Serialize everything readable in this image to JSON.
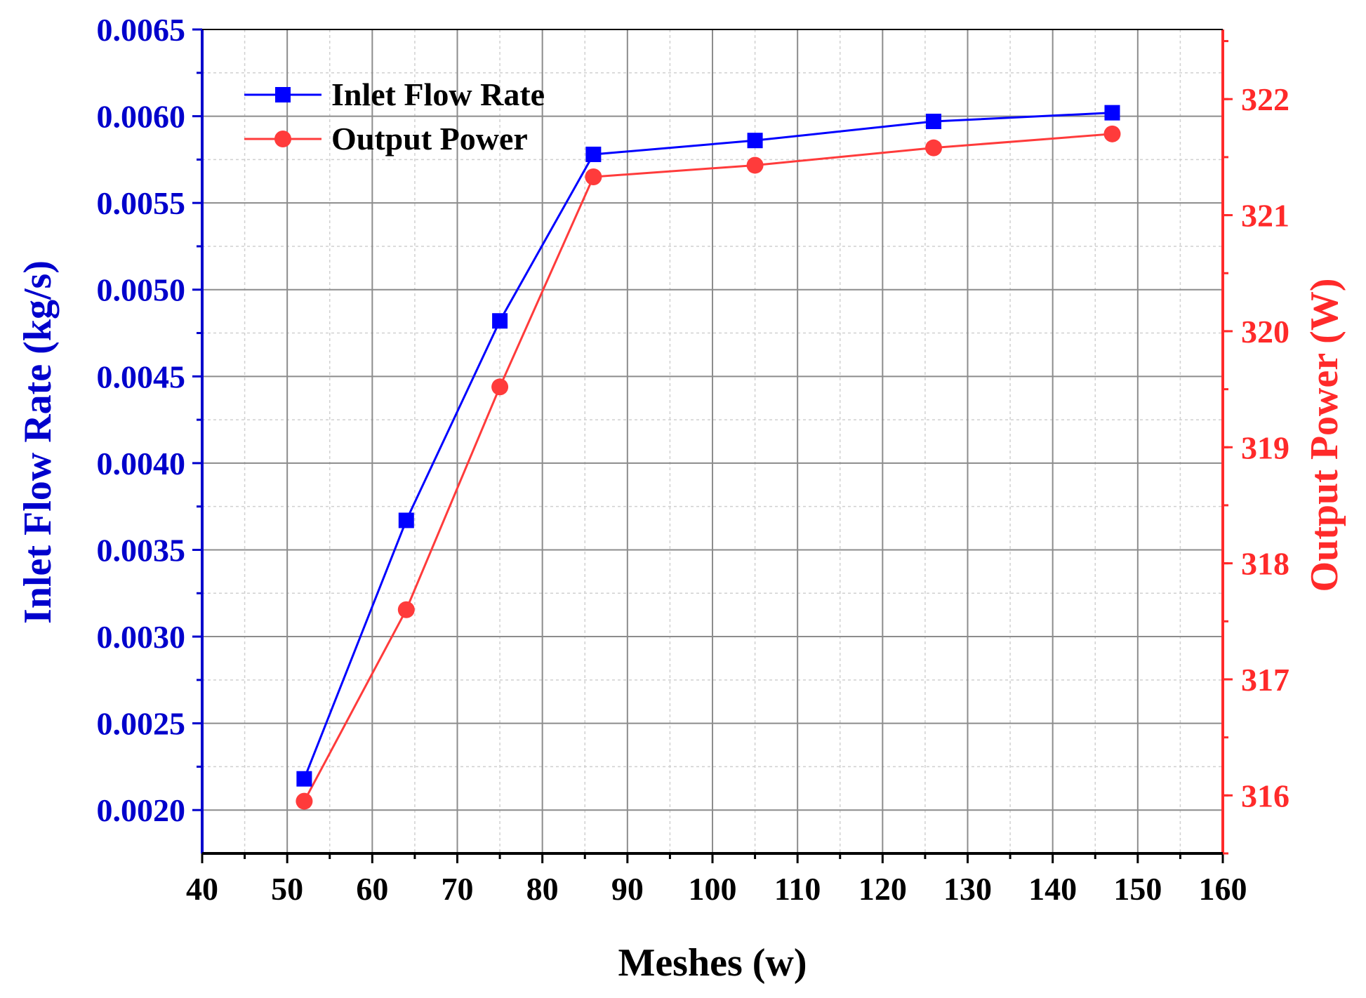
{
  "chart_data": {
    "type": "line",
    "title": "",
    "xlabel": "Meshes (w)",
    "ylabel_left": "Inlet Flow Rate (kg/s)",
    "ylabel_right": "Output Power (W)",
    "xlim": [
      40,
      160
    ],
    "xticks": [
      "40",
      "50",
      "60",
      "70",
      "80",
      "90",
      "100",
      "110",
      "120",
      "130",
      "140",
      "150",
      "160"
    ],
    "ylim_left": [
      0.00175,
      0.0065
    ],
    "yticks_left": [
      "0.0020",
      "0.0025",
      "0.0030",
      "0.0035",
      "0.0040",
      "0.0045",
      "0.0050",
      "0.0055",
      "0.0060",
      "0.0065"
    ],
    "ylim_right": [
      315.5,
      322.6
    ],
    "yticks_right": [
      "316",
      "317",
      "318",
      "319",
      "320",
      "321",
      "322"
    ],
    "grid": true,
    "legend_position": "top-left",
    "x": [
      52,
      64,
      75,
      86,
      105,
      126,
      147
    ],
    "series": [
      {
        "name": "Inlet Flow Rate",
        "axis": "left",
        "marker": "square",
        "color": "#0000ff",
        "values": [
          0.00218,
          0.00367,
          0.00482,
          0.00578,
          0.00586,
          0.00597,
          0.00602
        ]
      },
      {
        "name": "Output Power",
        "axis": "right",
        "marker": "circle",
        "color": "#ff3b3b",
        "values": [
          315.95,
          317.6,
          319.52,
          321.33,
          321.43,
          321.58,
          321.7
        ]
      }
    ],
    "colors": {
      "left_axis": "#0000cc",
      "right_axis": "#ff2a2a",
      "bottom_axis": "#000000",
      "grid_major": "#8c8c8c",
      "grid_minor": "#d0d0d0"
    }
  }
}
